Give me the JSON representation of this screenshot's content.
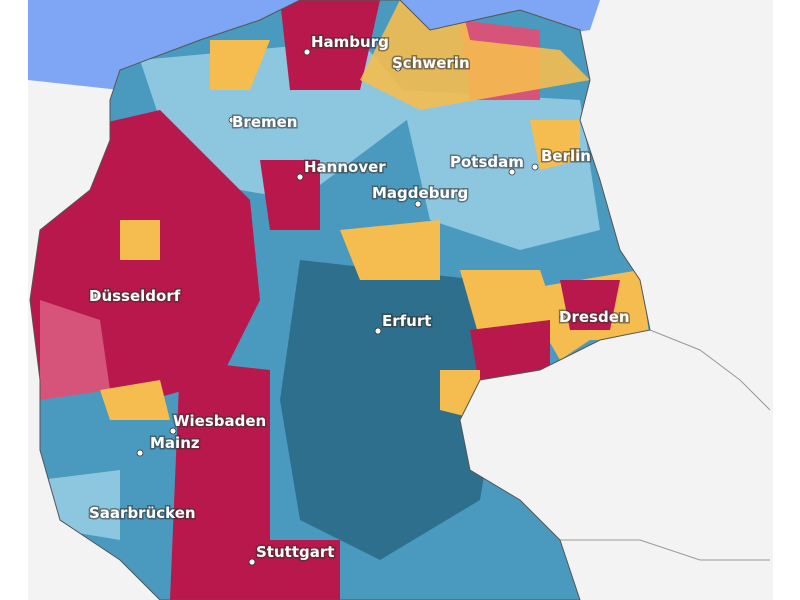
{
  "map": {
    "cities": [
      "Hamburg",
      "Schwerin",
      "Bremen",
      "Hannover",
      "Potsdam",
      "Berlin",
      "Magdeburg",
      "Düsseldorf",
      "Erfurt",
      "Dresden",
      "Wiesbaden",
      "Mainz",
      "Saarbrücken",
      "Stuttgart"
    ]
  }
}
